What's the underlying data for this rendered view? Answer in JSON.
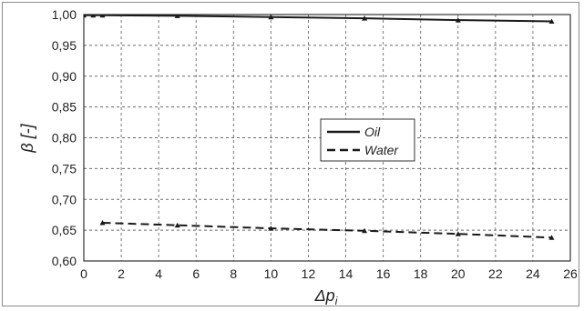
{
  "chart_data": {
    "type": "line",
    "xlabel": "Δp",
    "xlabel_subscript": "i",
    "ylabel": "β  [-]",
    "xlim": [
      0,
      26
    ],
    "ylim": [
      0.6,
      1.0
    ],
    "xticks": [
      "0",
      "2",
      "4",
      "6",
      "8",
      "10",
      "12",
      "14",
      "16",
      "18",
      "20",
      "22",
      "24",
      "26"
    ],
    "yticks": [
      "0,60",
      "0,65",
      "0,70",
      "0,75",
      "0,80",
      "0,85",
      "0,90",
      "0,95",
      "1,00"
    ],
    "grid": "dashed",
    "legend_position": "center-right",
    "series": [
      {
        "name": "Oil",
        "line_style": "solid",
        "x": [
          0,
          0.5,
          1,
          5,
          10,
          15,
          20,
          25
        ],
        "y": [
          0.999,
          0.999,
          0.999,
          0.998,
          0.996,
          0.994,
          0.991,
          0.989
        ]
      },
      {
        "name": "Water",
        "line_style": "dashed",
        "x": [
          1,
          5,
          10,
          15,
          20,
          25
        ],
        "y": [
          0.662,
          0.658,
          0.653,
          0.649,
          0.644,
          0.638
        ]
      }
    ]
  }
}
